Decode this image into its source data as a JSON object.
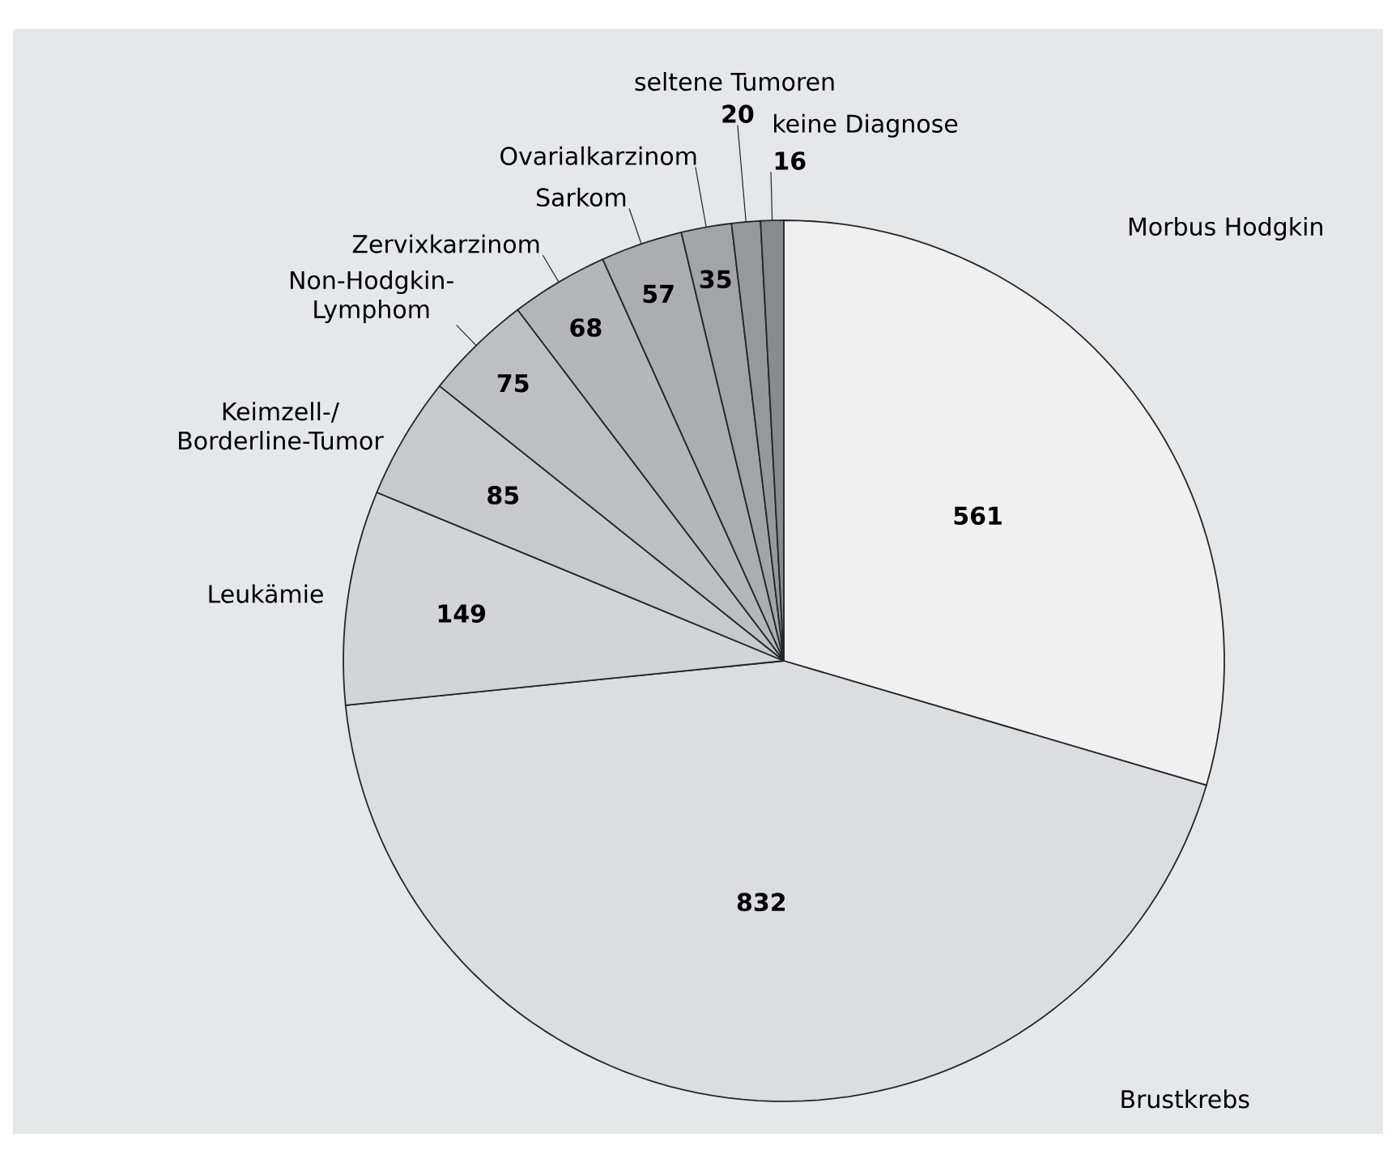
{
  "chart_data": {
    "type": "pie",
    "categories": [
      "Morbus Hodgkin",
      "Brustkrebs",
      "Leukämie",
      "Keimzell-/ Borderline-Tumor",
      "Non-Hodgkin-Lymphom",
      "Zervixkarzinom",
      "Sarkom",
      "Ovarialkarzinom",
      "seltene Tumoren",
      "keine Diagnose"
    ],
    "values": [
      561,
      832,
      149,
      85,
      75,
      68,
      57,
      35,
      20,
      16
    ],
    "colors": [
      "#f0f0f0",
      "#dcdde0",
      "#d3d4d6",
      "#c8c9cb",
      "#bebfc1",
      "#b5b6b8",
      "#acadaf",
      "#a3a4a6",
      "#97989a",
      "#8a8b8d"
    ],
    "data_labels": true
  }
}
